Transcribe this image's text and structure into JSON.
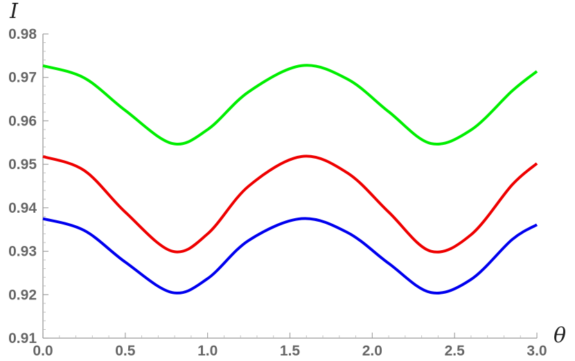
{
  "chart_data": {
    "type": "line",
    "xlabel": "θ",
    "ylabel": "I",
    "xlim": [
      0,
      3.0
    ],
    "ylim": [
      0.91,
      0.98
    ],
    "xticks": [
      "0.0",
      "0.5",
      "1.0",
      "1.5",
      "2.0",
      "2.5",
      "3.0"
    ],
    "yticks": [
      "0.91",
      "0.92",
      "0.93",
      "0.94",
      "0.95",
      "0.96",
      "0.97",
      "0.98"
    ],
    "x_minor_step": 0.1,
    "y_minor_step": 0.002,
    "grid": false,
    "series": [
      {
        "color": "#00ee00",
        "x": [
          0.0,
          0.25,
          0.5,
          0.785,
          1.0,
          1.25,
          1.571,
          1.85,
          2.1,
          2.356,
          2.6,
          2.85,
          3.0
        ],
        "y": [
          0.9727,
          0.9699,
          0.9624,
          0.9548,
          0.958,
          0.9667,
          0.9727,
          0.9696,
          0.9621,
          0.9548,
          0.9579,
          0.9669,
          0.9714
        ]
      },
      {
        "color": "#ee0000",
        "x": [
          0.0,
          0.25,
          0.5,
          0.785,
          1.0,
          1.25,
          1.571,
          1.85,
          2.1,
          2.356,
          2.6,
          2.85,
          3.0
        ],
        "y": [
          0.9518,
          0.9486,
          0.939,
          0.93,
          0.934,
          0.945,
          0.9518,
          0.948,
          0.939,
          0.93,
          0.9338,
          0.9453,
          0.9502
        ]
      },
      {
        "color": "#0000ee",
        "x": [
          0.0,
          0.25,
          0.5,
          0.785,
          1.0,
          1.25,
          1.571,
          1.85,
          2.1,
          2.356,
          2.6,
          2.85,
          3.0
        ],
        "y": [
          0.9375,
          0.9348,
          0.9275,
          0.9205,
          0.9237,
          0.9325,
          0.9375,
          0.9343,
          0.9272,
          0.9205,
          0.9235,
          0.9327,
          0.9361
        ]
      }
    ]
  }
}
